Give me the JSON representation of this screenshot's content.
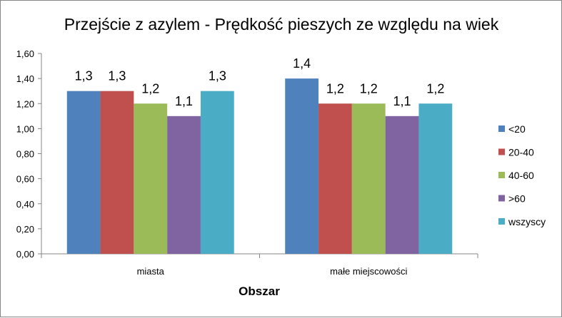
{
  "chart_data": {
    "type": "bar",
    "title": "Przejście z azylem - Prędkość pieszych ze względu na wiek",
    "xlabel": "Obszar",
    "ylabel": "",
    "categories": [
      "miasta",
      "małe miejscowości"
    ],
    "series": [
      {
        "name": "<20",
        "color": "#4f81bd",
        "values": [
          1.3,
          1.4
        ],
        "labels": [
          "1,3",
          "1,4"
        ]
      },
      {
        "name": "20-40",
        "color": "#c0504d",
        "values": [
          1.3,
          1.2
        ],
        "labels": [
          "1,3",
          "1,2"
        ]
      },
      {
        "name": "40-60",
        "color": "#9bbb59",
        "values": [
          1.2,
          1.2
        ],
        "labels": [
          "1,2",
          "1,2"
        ]
      },
      {
        "name": ">60",
        "color": "#8064a2",
        "values": [
          1.1,
          1.1
        ],
        "labels": [
          "1,1",
          "1,1"
        ]
      },
      {
        "name": "wszyscy",
        "color": "#4bacc6",
        "values": [
          1.3,
          1.2
        ],
        "labels": [
          "1,3",
          "1,2"
        ]
      }
    ],
    "ylim": [
      0,
      1.6
    ],
    "yticks": [
      0,
      0.2,
      0.4,
      0.6,
      0.8,
      1.0,
      1.2,
      1.4,
      1.6
    ],
    "ytick_labels": [
      "0,00",
      "0,20",
      "0,40",
      "0,60",
      "0,80",
      "1,00",
      "1,20",
      "1,40",
      "1,60"
    ],
    "grid": false,
    "legend_position": "right"
  }
}
